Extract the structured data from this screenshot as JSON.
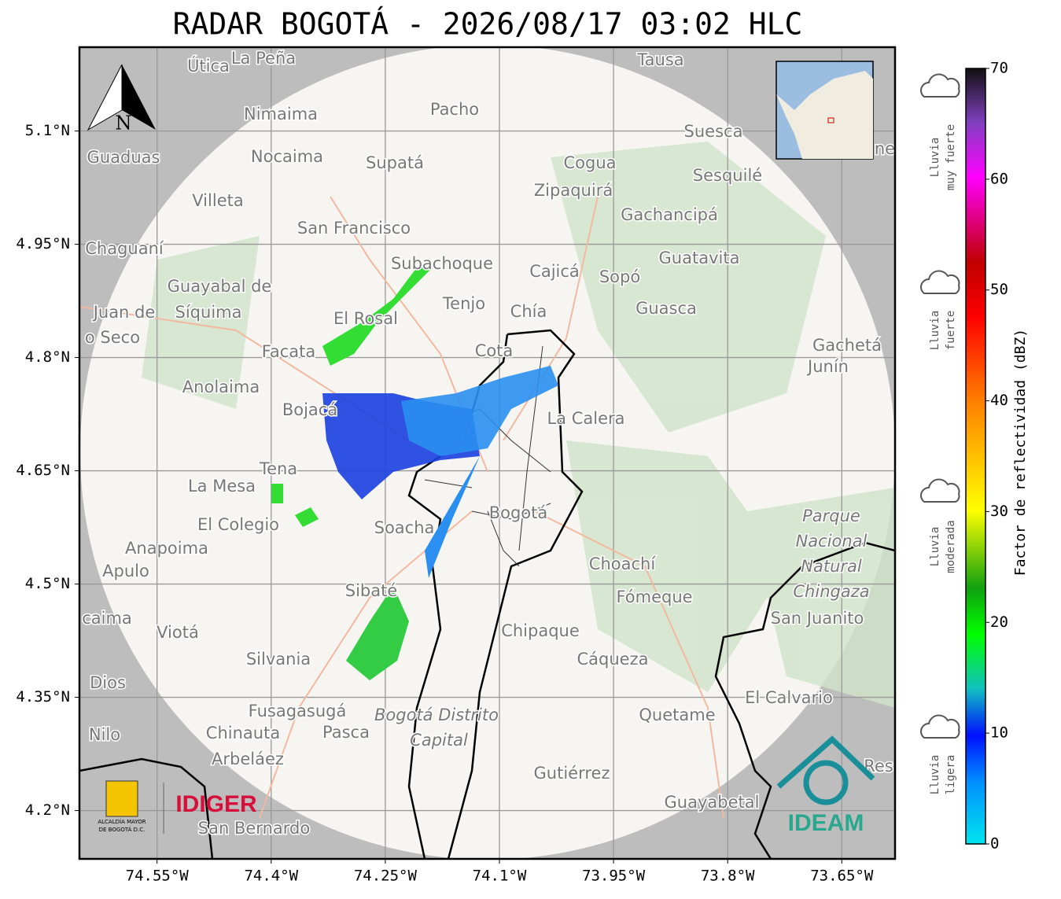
{
  "title": "RADAR BOGOTÁ - 2026/08/17 03:02 HLC",
  "map": {
    "xlim": [
      -74.652,
      -73.58
    ],
    "ylim": [
      4.136,
      5.211
    ],
    "xticks": [
      {
        "value": -74.55,
        "label": "74.55°W"
      },
      {
        "value": -74.4,
        "label": "74.4°W"
      },
      {
        "value": -74.25,
        "label": "74.25°W"
      },
      {
        "value": -74.1,
        "label": "74.1°W"
      },
      {
        "value": -73.95,
        "label": "73.95°W"
      },
      {
        "value": -73.8,
        "label": "73.8°W"
      },
      {
        "value": -73.65,
        "label": "73.65°W"
      }
    ],
    "yticks": [
      {
        "value": 5.1,
        "label": "5.1°N"
      },
      {
        "value": 4.95,
        "label": "4.95°N"
      },
      {
        "value": 4.8,
        "label": "4.8°N"
      },
      {
        "value": 4.65,
        "label": "4.65°N"
      },
      {
        "value": 4.5,
        "label": "4.5°N"
      },
      {
        "value": 4.35,
        "label": "4.35°N"
      },
      {
        "value": 4.2,
        "label": "4.2°N"
      }
    ],
    "grid": true,
    "north": "N",
    "places": [
      "Útica",
      "La Peña",
      "Tausa",
      "Pacho",
      "Nimaima",
      "Suesca",
      "Guaduas",
      "Nocaima",
      "Supatá",
      "Cogua",
      "Sesquilé",
      "Zipaquirá",
      "Villeta",
      "Gachancipá",
      "San Francisco",
      "Chaguaní",
      "Guatavita",
      "Subachoque",
      "Cajicá",
      "Sopó",
      "Guayabal de",
      "Tenjo",
      "Chía",
      "Guasca",
      "Juan de",
      "Síquima",
      "El Rosal",
      "o Seco",
      "Facata",
      "Cota",
      "Gachetá",
      "Junín",
      "Anolaima",
      "Bojacá",
      "La Calera",
      "Tena",
      "La Mesa",
      "Bogotá",
      "El Colegio",
      "Soacha",
      "Anapoima",
      "Choachí",
      "Apulo",
      "Sibaté",
      "Fómeque",
      "San Juanito",
      "caima",
      "Viotá",
      "Chipaque",
      "Silvania",
      "Cáqueza",
      "Dios",
      "El Calvario",
      "Fusagasugá",
      "Quetame",
      "Nilo",
      "Chinauta",
      "Pasca",
      "Arbeláez",
      "Gutiérrez",
      "Res",
      "ne",
      "Guayabetal",
      "San Bernardo"
    ],
    "park": [
      "Parque",
      "Nacional",
      "Natural",
      "Chingaza"
    ],
    "district": [
      "Bogotá Distrito",
      "Capital"
    ],
    "logos": {
      "idiger": "IDIGER",
      "ideam": "IDEAM",
      "alcaldia": [
        "ALCALDÍA MAYOR",
        "DE BOGOTÁ D.C."
      ]
    }
  },
  "colorbar": {
    "lim": [
      0,
      70
    ],
    "ticks": [
      0,
      10,
      20,
      30,
      40,
      50,
      60,
      70
    ],
    "label": "Factor de reflectividad (dBZ)",
    "categories": [
      [
        "Lluvia",
        "muy fuerte"
      ],
      [
        "Lluvia",
        "fuerte"
      ],
      [
        "Lluvia",
        "moderada"
      ],
      [
        "Lluvia",
        "ligera"
      ]
    ]
  }
}
